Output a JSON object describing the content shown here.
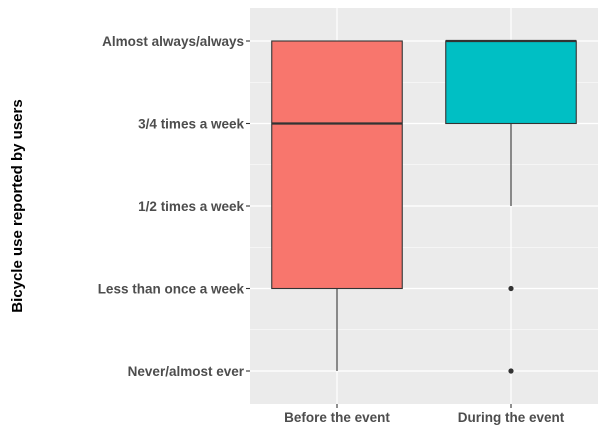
{
  "chart_data": {
    "type": "box",
    "title": "",
    "xlabel": "",
    "ylabel": "Bicycle use reported by users",
    "y_levels": [
      "Never/almost ever",
      "Less than once a week",
      "1/2 times a week",
      "3/4 times a week",
      "Almost always/always"
    ],
    "categories": [
      "Before the event",
      "During the event"
    ],
    "boxes": [
      {
        "category": "Before the event",
        "lower_whisker": 1,
        "q1": 2,
        "median": 4,
        "q3": 5,
        "upper_whisker": 5,
        "outliers": [],
        "fill": "#F8766D"
      },
      {
        "category": "During the event",
        "lower_whisker": 3,
        "q1": 4,
        "median": 5,
        "q3": 5,
        "upper_whisker": 5,
        "outliers": [
          2,
          1
        ],
        "fill": "#00BFC4"
      }
    ],
    "grid": true,
    "legend": "none",
    "panel_background": "#EBEBEB",
    "gridline_color": "#FFFFFF"
  }
}
